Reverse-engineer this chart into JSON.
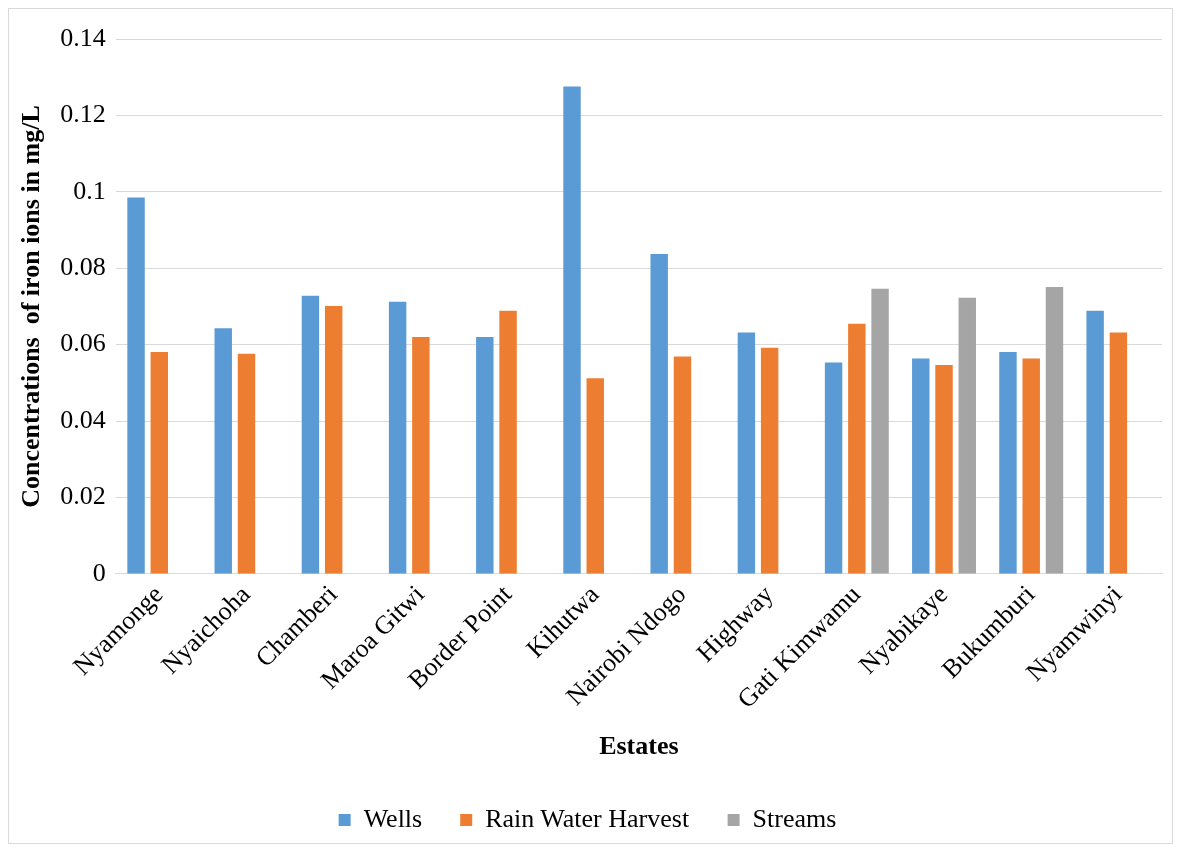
{
  "chart_data": {
    "type": "bar",
    "xlabel": "Estates",
    "ylabel": "Concentrations  of iron ions in mg/L",
    "categories": [
      "Nyamonge",
      "Nyaichoha",
      "Chamberi",
      "Maroa Gitwi",
      "Border Point",
      "Kihutwa",
      "Nairobi Ndogo",
      "Highway",
      "Gati Kimwamu",
      "Nyabikaye",
      "Bukumburi",
      "Nyamwinyi"
    ],
    "series": [
      {
        "name": "Wells",
        "color": "#5b9bd5",
        "values": [
          0.0985,
          0.0643,
          0.0728,
          0.0712,
          0.062,
          0.1276,
          0.0837,
          0.0632,
          0.0553,
          0.0564,
          0.0581,
          0.0689
        ]
      },
      {
        "name": "Rain Water Harvest",
        "color": "#ed7d31",
        "values": [
          0.0581,
          0.0576,
          0.0701,
          0.062,
          0.0689,
          0.0512,
          0.0569,
          0.0592,
          0.0655,
          0.0547,
          0.0564,
          0.0632
        ]
      },
      {
        "name": "Streams",
        "color": "#a5a5a5",
        "values": [
          null,
          null,
          null,
          null,
          null,
          null,
          null,
          null,
          0.0746,
          0.0723,
          0.0751,
          null
        ]
      }
    ],
    "ylim": [
      0,
      0.14
    ],
    "yticks": [
      0,
      0.02,
      0.04,
      0.06,
      0.08,
      0.1,
      0.12,
      0.14
    ],
    "grid": "y",
    "legend": "bottom"
  }
}
